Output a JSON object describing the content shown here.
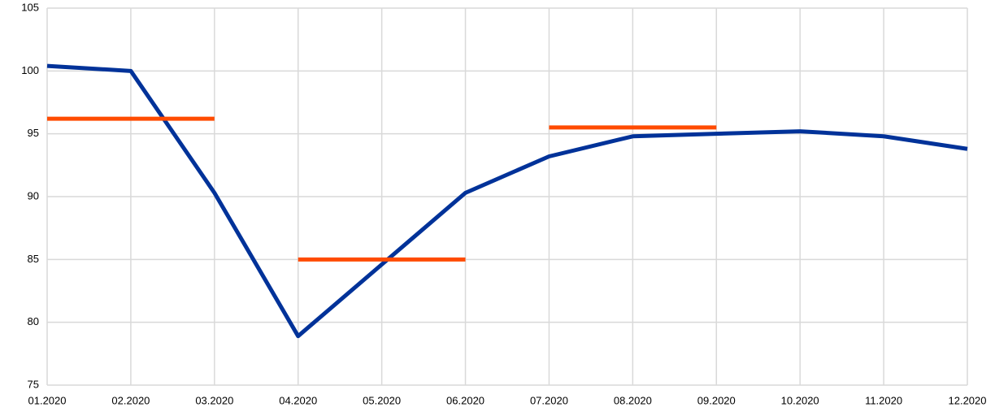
{
  "chart_data": {
    "type": "line",
    "categories": [
      "01.2020",
      "02.2020",
      "03.2020",
      "04.2020",
      "05.2020",
      "06.2020",
      "07.2020",
      "08.2020",
      "09.2020",
      "10.2020",
      "11.2020",
      "12.2020"
    ],
    "series": [
      {
        "color": "#003299",
        "values": [
          100.4,
          100.0,
          90.3,
          78.9,
          84.6,
          90.3,
          93.2,
          94.8,
          95.0,
          95.2,
          94.8,
          93.8
        ]
      },
      {
        "color": "#ff4b00",
        "values": [
          96.2,
          96.2,
          96.2,
          null,
          null,
          null,
          null,
          null,
          null,
          null,
          null,
          null
        ]
      },
      {
        "color": "#ff4b00",
        "values": [
          null,
          null,
          null,
          85.0,
          85.0,
          85.0,
          null,
          null,
          null,
          null,
          null,
          null
        ]
      },
      {
        "color": "#ff4b00",
        "values": [
          null,
          null,
          null,
          null,
          null,
          null,
          95.5,
          95.5,
          95.5,
          null,
          null,
          null
        ]
      }
    ],
    "ylim": [
      75,
      105
    ],
    "yticks": [
      75,
      80,
      85,
      90,
      95,
      100,
      105
    ],
    "grid": true
  }
}
